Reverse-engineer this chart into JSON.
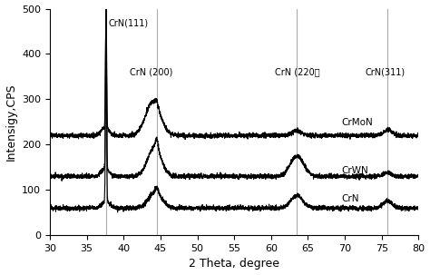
{
  "xlabel": "2 Theta, degree",
  "ylabel": "Intensigy,CPS",
  "xlim": [
    30,
    80
  ],
  "ylim": [
    0,
    500
  ],
  "xticks": [
    30,
    35,
    40,
    45,
    50,
    55,
    60,
    65,
    70,
    75,
    80
  ],
  "yticks": [
    0,
    100,
    200,
    300,
    400,
    500
  ],
  "vlines": [
    37.6,
    44.5,
    63.5,
    75.8
  ],
  "vline_color": "#aaaaaa",
  "line_color": "#000000",
  "background_color": "#ffffff",
  "baseline_CrN": 60,
  "baseline_CrWN": 130,
  "baseline_CrMoN": 220,
  "noise_amp": 2.5
}
